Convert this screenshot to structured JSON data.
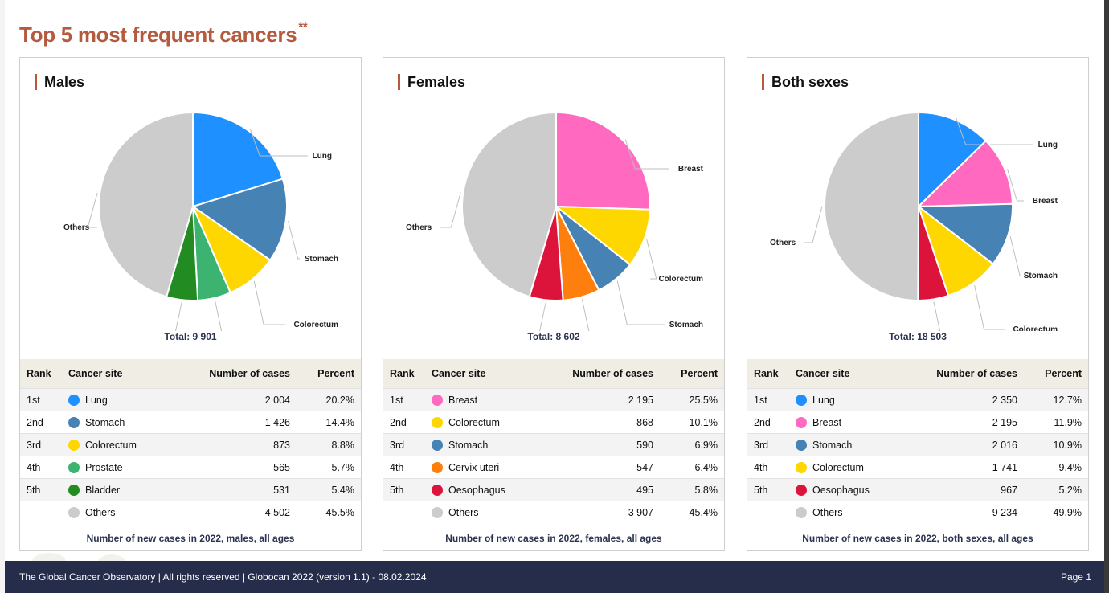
{
  "page": {
    "title": "Top 5 most frequent cancers",
    "title_mark": "**",
    "footer_text": "The Global Cancer Observatory | All rights reserved | Globocan 2022 (version 1.1) - 08.02.2024",
    "page_label": "Page 1"
  },
  "table_headers": {
    "rank": "Rank",
    "site": "Cancer site",
    "cases": "Number of cases",
    "percent": "Percent"
  },
  "chart_data": [
    {
      "type": "pie",
      "title": "Males",
      "total_label": "Total: 9 901",
      "caption": "Number of new cases in 2022, males, all ages",
      "slices": [
        {
          "rank": "1st",
          "label": "Lung",
          "value": 2004,
          "cases": "2 004",
          "percent": "20.2%",
          "color": "#1e90ff"
        },
        {
          "rank": "2nd",
          "label": "Stomach",
          "value": 1426,
          "cases": "1 426",
          "percent": "14.4%",
          "color": "#4682b4"
        },
        {
          "rank": "3rd",
          "label": "Colorectum",
          "value": 873,
          "cases": "873",
          "percent": "8.8%",
          "color": "#ffd700"
        },
        {
          "rank": "4th",
          "label": "Prostate",
          "value": 565,
          "cases": "565",
          "percent": "5.7%",
          "color": "#3cb371"
        },
        {
          "rank": "5th",
          "label": "Bladder",
          "value": 531,
          "cases": "531",
          "percent": "5.4%",
          "color": "#228b22"
        },
        {
          "rank": "-",
          "label": "Others",
          "value": 4502,
          "cases": "4 502",
          "percent": "45.5%",
          "color": "#cccccc"
        }
      ]
    },
    {
      "type": "pie",
      "title": "Females",
      "total_label": "Total: 8 602",
      "caption": "Number of new cases in 2022, females, all ages",
      "slices": [
        {
          "rank": "1st",
          "label": "Breast",
          "value": 2195,
          "cases": "2 195",
          "percent": "25.5%",
          "color": "#ff69c0"
        },
        {
          "rank": "2nd",
          "label": "Colorectum",
          "value": 868,
          "cases": "868",
          "percent": "10.1%",
          "color": "#ffd700"
        },
        {
          "rank": "3rd",
          "label": "Stomach",
          "value": 590,
          "cases": "590",
          "percent": "6.9%",
          "color": "#4682b4"
        },
        {
          "rank": "4th",
          "label": "Cervix uteri",
          "value": 547,
          "cases": "547",
          "percent": "6.4%",
          "color": "#ff7f0e"
        },
        {
          "rank": "5th",
          "label": "Oesophagus",
          "value": 495,
          "cases": "495",
          "percent": "5.8%",
          "color": "#dc143c"
        },
        {
          "rank": "-",
          "label": "Others",
          "value": 3907,
          "cases": "3 907",
          "percent": "45.4%",
          "color": "#cccccc"
        }
      ]
    },
    {
      "type": "pie",
      "title": "Both sexes",
      "total_label": "Total: 18 503",
      "caption": "Number of new cases in 2022, both sexes, all ages",
      "slices": [
        {
          "rank": "1st",
          "label": "Lung",
          "value": 2350,
          "cases": "2 350",
          "percent": "12.7%",
          "color": "#1e90ff"
        },
        {
          "rank": "2nd",
          "label": "Breast",
          "value": 2195,
          "cases": "2 195",
          "percent": "11.9%",
          "color": "#ff69c0"
        },
        {
          "rank": "3rd",
          "label": "Stomach",
          "value": 2016,
          "cases": "2 016",
          "percent": "10.9%",
          "color": "#4682b4"
        },
        {
          "rank": "4th",
          "label": "Colorectum",
          "value": 1741,
          "cases": "1 741",
          "percent": "9.4%",
          "color": "#ffd700"
        },
        {
          "rank": "5th",
          "label": "Oesophagus",
          "value": 967,
          "cases": "967",
          "percent": "5.2%",
          "color": "#dc143c"
        },
        {
          "rank": "-",
          "label": "Others",
          "value": 9234,
          "cases": "9 234",
          "percent": "49.9%",
          "color": "#cccccc"
        }
      ]
    }
  ]
}
